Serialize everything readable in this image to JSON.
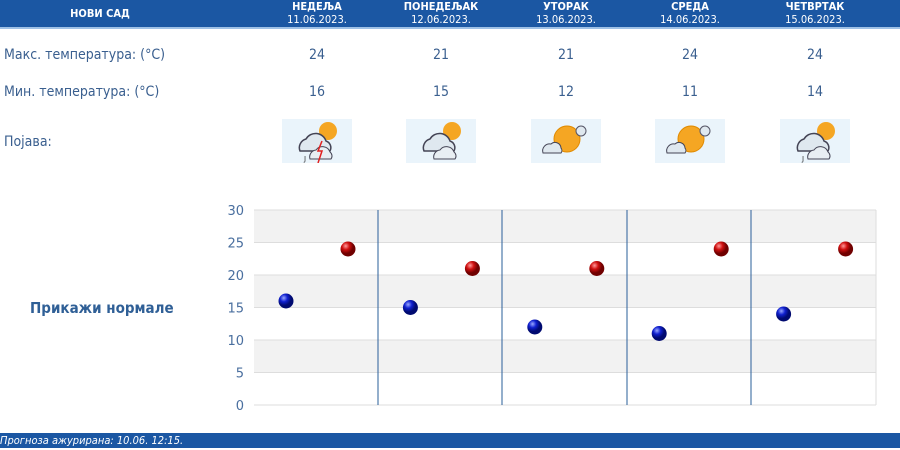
{
  "header": {
    "city": "НОВИ САД",
    "days": [
      {
        "name": "НЕДЕЉА",
        "date": "11.06.2023."
      },
      {
        "name": "ПОНЕДЕЉАК",
        "date": "12.06.2023."
      },
      {
        "name": "УТОРАК",
        "date": "13.06.2023."
      },
      {
        "name": "СРЕДА",
        "date": "14.06.2023."
      },
      {
        "name": "ЧЕТВРТАК",
        "date": "15.06.2023."
      }
    ]
  },
  "rows": {
    "max_label": "Макс. температура: (°C)",
    "min_label": "Мин. температура: (°C)",
    "phenomenon_label": "Појава:",
    "max": [
      "24",
      "21",
      "21",
      "24",
      "24"
    ],
    "min": [
      "16",
      "15",
      "12",
      "11",
      "14"
    ],
    "icons": [
      "partly-cloudy-thunderstorm-rain-icon",
      "partly-cloudy-icon",
      "mostly-sunny-icon",
      "mostly-sunny-icon",
      "partly-cloudy-rain-icon"
    ]
  },
  "show_normals": "Прикажи нормале",
  "chart_data": {
    "type": "scatter",
    "ylim": [
      0,
      30
    ],
    "yticks": [
      "0",
      "5",
      "10",
      "15",
      "20",
      "25",
      "30"
    ],
    "series": [
      {
        "values": [
          16,
          15,
          12,
          11,
          14
        ],
        "color": "#0a14c8"
      },
      {
        "values": [
          24,
          21,
          21,
          24,
          24
        ],
        "color": "#d01010"
      }
    ],
    "grid": true
  },
  "footer": "Прогноза ажурирана:  10.06. 12:15."
}
